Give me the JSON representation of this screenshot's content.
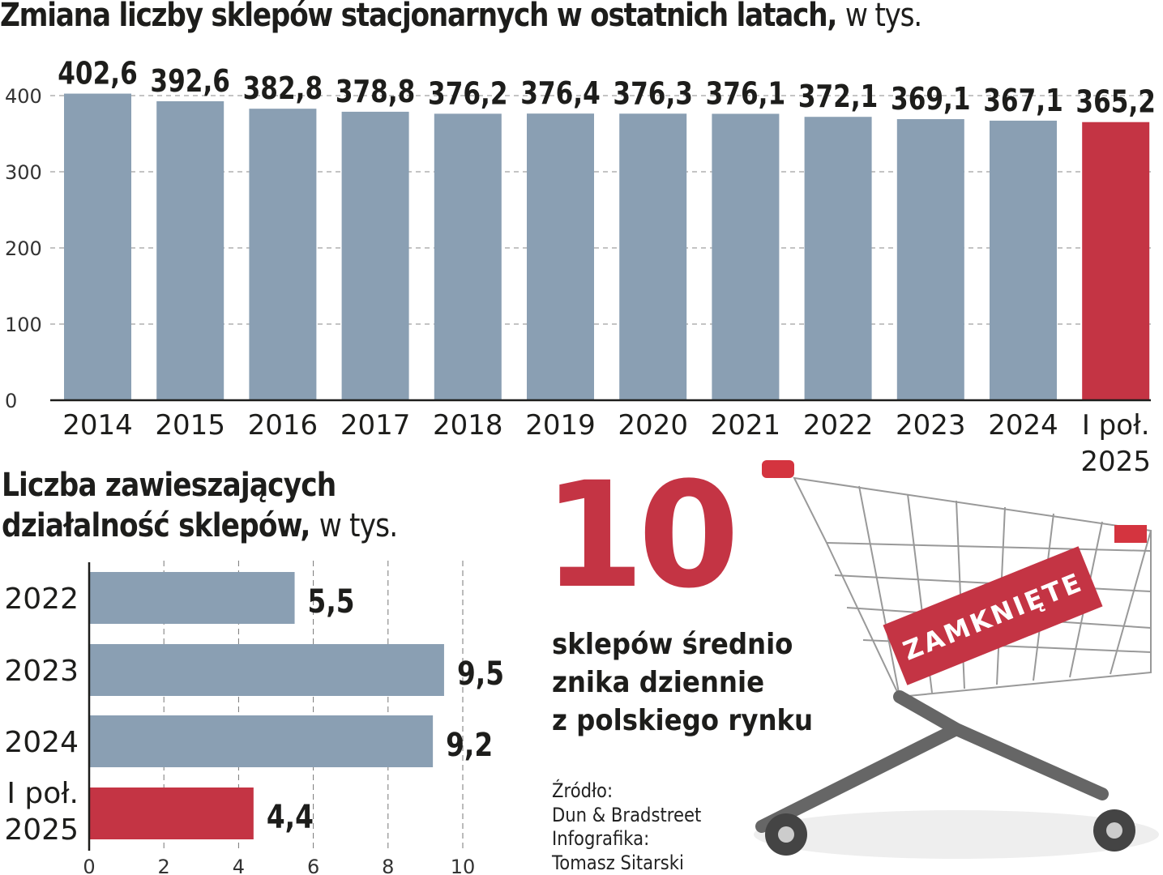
{
  "chart_data": [
    {
      "type": "bar",
      "title": "Zmiana liczby sklepów stacjonarnych w ostatnich latach,",
      "unit": "w tys.",
      "categories": [
        "2014",
        "2015",
        "2016",
        "2017",
        "2018",
        "2019",
        "2020",
        "2021",
        "2022",
        "2023",
        "2024",
        "I poł. 2025"
      ],
      "values": [
        402.6,
        392.6,
        382.8,
        378.8,
        376.2,
        376.4,
        376.3,
        376.1,
        372.1,
        369.1,
        367.1,
        365.2
      ],
      "data_labels": [
        "402,6",
        "392,6",
        "382,8",
        "378,8",
        "376,2",
        "376,4",
        "376,3",
        "376,1",
        "372,1",
        "369,1",
        "367,1",
        "365,2"
      ],
      "yticks": [
        "0",
        "100",
        "200",
        "300",
        "400"
      ],
      "ylim": [
        0,
        400
      ],
      "grid": true,
      "colors": [
        "#8a9fb3",
        "#8a9fb3",
        "#8a9fb3",
        "#8a9fb3",
        "#8a9fb3",
        "#8a9fb3",
        "#8a9fb3",
        "#8a9fb3",
        "#8a9fb3",
        "#8a9fb3",
        "#8a9fb3",
        "#c43444"
      ]
    },
    {
      "type": "bar",
      "orientation": "horizontal",
      "title_line1": "Liczba zawieszających",
      "title_line2": "działalność sklepów,",
      "unit": "w tys.",
      "categories": [
        "2022",
        "2023",
        "2024",
        "I poł. 2025"
      ],
      "values": [
        5.5,
        9.5,
        9.2,
        4.4
      ],
      "data_labels": [
        "5,5",
        "9,5",
        "9,2",
        "4,4"
      ],
      "xticks": [
        "0",
        "2",
        "4",
        "6",
        "8",
        "10"
      ],
      "xlim": [
        0,
        10
      ],
      "grid": true,
      "colors": [
        "#8a9fb3",
        "#8a9fb3",
        "#8a9fb3",
        "#c43444"
      ]
    }
  ],
  "highlight": {
    "number": "10",
    "text_lines": [
      "sklepów średnio",
      "znika dziennie",
      "z polskiego rynku"
    ],
    "color": "#c43444"
  },
  "illustration": {
    "sign_text": "ZAMKNIĘTE"
  },
  "source": {
    "lines": [
      "Źródło:",
      "Dun & Bradstreet",
      "Infografika:",
      "Tomasz Sitarski"
    ]
  }
}
